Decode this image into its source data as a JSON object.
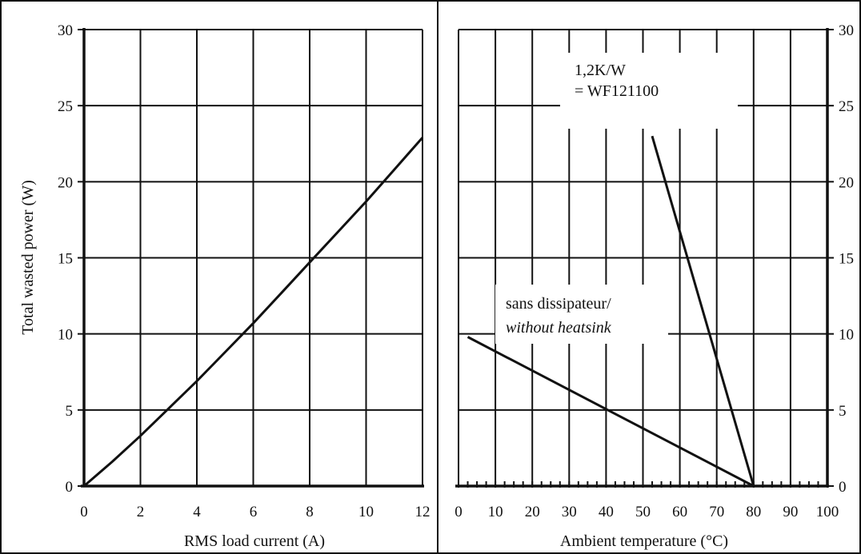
{
  "chart_data": [
    {
      "type": "line",
      "xlabel": "RMS load current (A)",
      "ylabel": "Total wasted power (W)",
      "xlim": [
        0,
        12
      ],
      "ylim": [
        0,
        30
      ],
      "x_ticks": [
        "0",
        "2",
        "4",
        "6",
        "8",
        "10",
        "12"
      ],
      "y_ticks": [
        "0",
        "5",
        "10",
        "15",
        "20",
        "25",
        "30"
      ],
      "grid": true,
      "series": [
        {
          "x": [
            0,
            1,
            2,
            3,
            4,
            5,
            6,
            7,
            8,
            9,
            10,
            11,
            12
          ],
          "y": [
            0,
            1.6,
            3.3,
            5.1,
            6.9,
            8.8,
            10.7,
            12.7,
            14.7,
            16.7,
            18.7,
            20.8,
            22.9
          ]
        }
      ]
    },
    {
      "type": "line",
      "xlabel": "Ambient temperature (°C)",
      "xlim": [
        0,
        100
      ],
      "ylim": [
        0,
        30
      ],
      "x_ticks": [
        "0",
        "10",
        "20",
        "30",
        "40",
        "50",
        "60",
        "70",
        "80",
        "90",
        "100"
      ],
      "y_ticks": [
        "0",
        "5",
        "10",
        "15",
        "20",
        "25",
        "30"
      ],
      "y_axis_side": "right",
      "grid": true,
      "series": [
        {
          "x": [
            2.5,
            80
          ],
          "y": [
            9.8,
            0
          ]
        },
        {
          "x": [
            52.5,
            80
          ],
          "y": [
            23,
            0
          ]
        }
      ],
      "annotations": [
        {
          "lines": [
            "1,2K/W",
            "= WF121100"
          ]
        },
        {
          "lines": [
            "sans dissipateur/",
            "without heatsink"
          ]
        }
      ]
    }
  ]
}
